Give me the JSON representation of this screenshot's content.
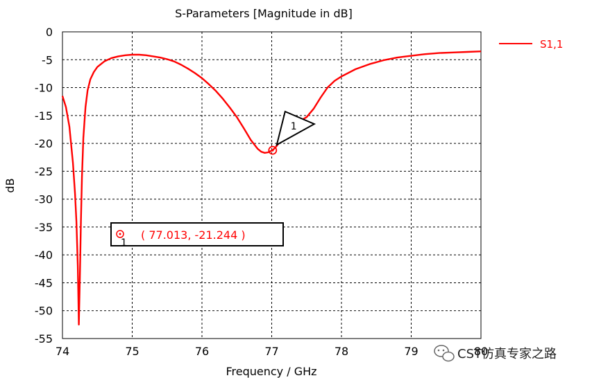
{
  "chart_data": {
    "type": "line",
    "title": "S-Parameters [Magnitude in dB]",
    "xlabel": "Frequency / GHz",
    "ylabel": "dB",
    "xlim": [
      74,
      80
    ],
    "ylim": [
      -55,
      0
    ],
    "xticks": [
      "74",
      "75",
      "76",
      "77",
      "78",
      "79",
      "80"
    ],
    "yticks": [
      "0",
      "-5",
      "-10",
      "-15",
      "-20",
      "-25",
      "-30",
      "-35",
      "-40",
      "-45",
      "-50",
      "-55"
    ],
    "grid": true,
    "legend_position": "top-right, outside plot",
    "series": [
      {
        "name": "S1,1",
        "color": "#ff0000",
        "x": [
          74.0,
          74.05,
          74.1,
          74.15,
          74.18,
          74.2,
          74.22,
          74.235,
          74.25,
          74.265,
          74.28,
          74.3,
          74.33,
          74.36,
          74.4,
          74.45,
          74.5,
          74.6,
          74.7,
          74.8,
          74.9,
          75.0,
          75.1,
          75.2,
          75.3,
          75.4,
          75.5,
          75.6,
          75.7,
          75.8,
          75.9,
          76.0,
          76.1,
          76.2,
          76.3,
          76.4,
          76.5,
          76.6,
          76.7,
          76.8,
          76.85,
          76.9,
          76.95,
          77.0,
          77.013,
          77.05,
          77.1,
          77.2,
          77.3,
          77.4,
          77.5,
          77.6,
          77.7,
          77.8,
          77.9,
          78.0,
          78.2,
          78.4,
          78.6,
          78.8,
          79.0,
          79.2,
          79.4,
          79.6,
          79.8,
          80.0
        ],
        "values": [
          -11.5,
          -13.5,
          -17.0,
          -23.5,
          -29.0,
          -34.0,
          -42.0,
          -52.5,
          -44.0,
          -34.0,
          -26.0,
          -19.0,
          -13.5,
          -10.5,
          -8.5,
          -7.2,
          -6.3,
          -5.3,
          -4.7,
          -4.4,
          -4.2,
          -4.1,
          -4.1,
          -4.2,
          -4.4,
          -4.6,
          -4.9,
          -5.3,
          -5.9,
          -6.6,
          -7.4,
          -8.3,
          -9.4,
          -10.6,
          -12.0,
          -13.6,
          -15.3,
          -17.3,
          -19.4,
          -21.0,
          -21.5,
          -21.7,
          -21.6,
          -21.3,
          -21.2,
          -20.8,
          -20.0,
          -18.5,
          -17.0,
          -16.0,
          -15.3,
          -13.8,
          -11.8,
          -10.0,
          -8.8,
          -8.0,
          -6.7,
          -5.8,
          -5.1,
          -4.6,
          -4.3,
          -4.0,
          -3.8,
          -3.7,
          -3.6,
          -3.5
        ]
      }
    ],
    "marker": {
      "id": "1",
      "x": 77.013,
      "y": -21.244,
      "readout": "( 77.013, -21.244 )",
      "color": "#ff0000"
    }
  },
  "watermark": "CST仿真专家之路"
}
